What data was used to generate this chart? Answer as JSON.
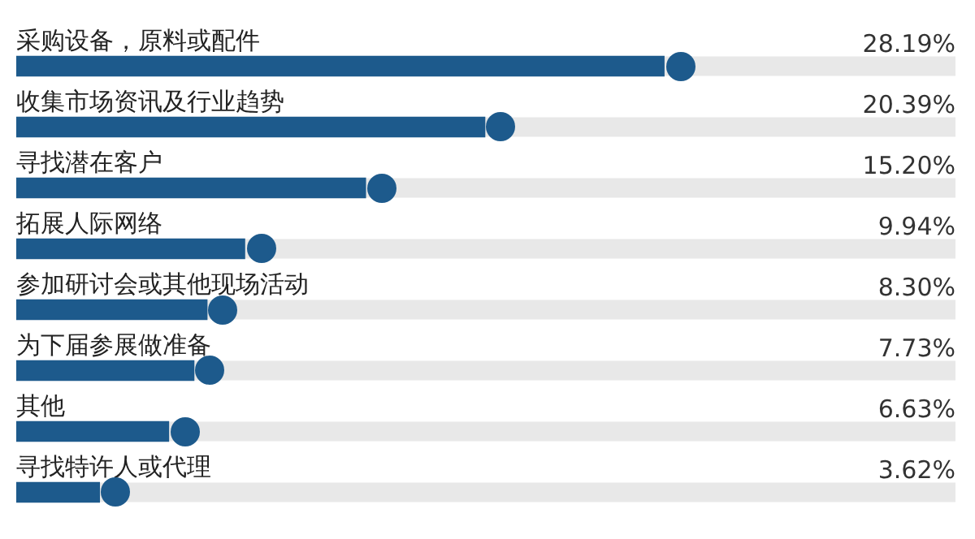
{
  "chart_data": {
    "type": "bar",
    "orientation": "horizontal",
    "categories": [
      "采购设备，原料或配件",
      "收集市场资讯及行业趋势",
      "寻找潜在客户",
      "拓展人际网络",
      "参加研讨会或其他现场活动",
      "为下届参展做准备",
      "其他",
      "寻找特许人或代理"
    ],
    "values": [
      28.19,
      20.39,
      15.2,
      9.94,
      8.3,
      7.73,
      6.63,
      3.62
    ],
    "value_labels": [
      "28.19%",
      "20.39%",
      "15.20%",
      "9.94%",
      "8.30%",
      "7.73%",
      "6.63%",
      "3.62%"
    ],
    "color": "#1d5a8c",
    "marker": "circle",
    "legend": false
  }
}
